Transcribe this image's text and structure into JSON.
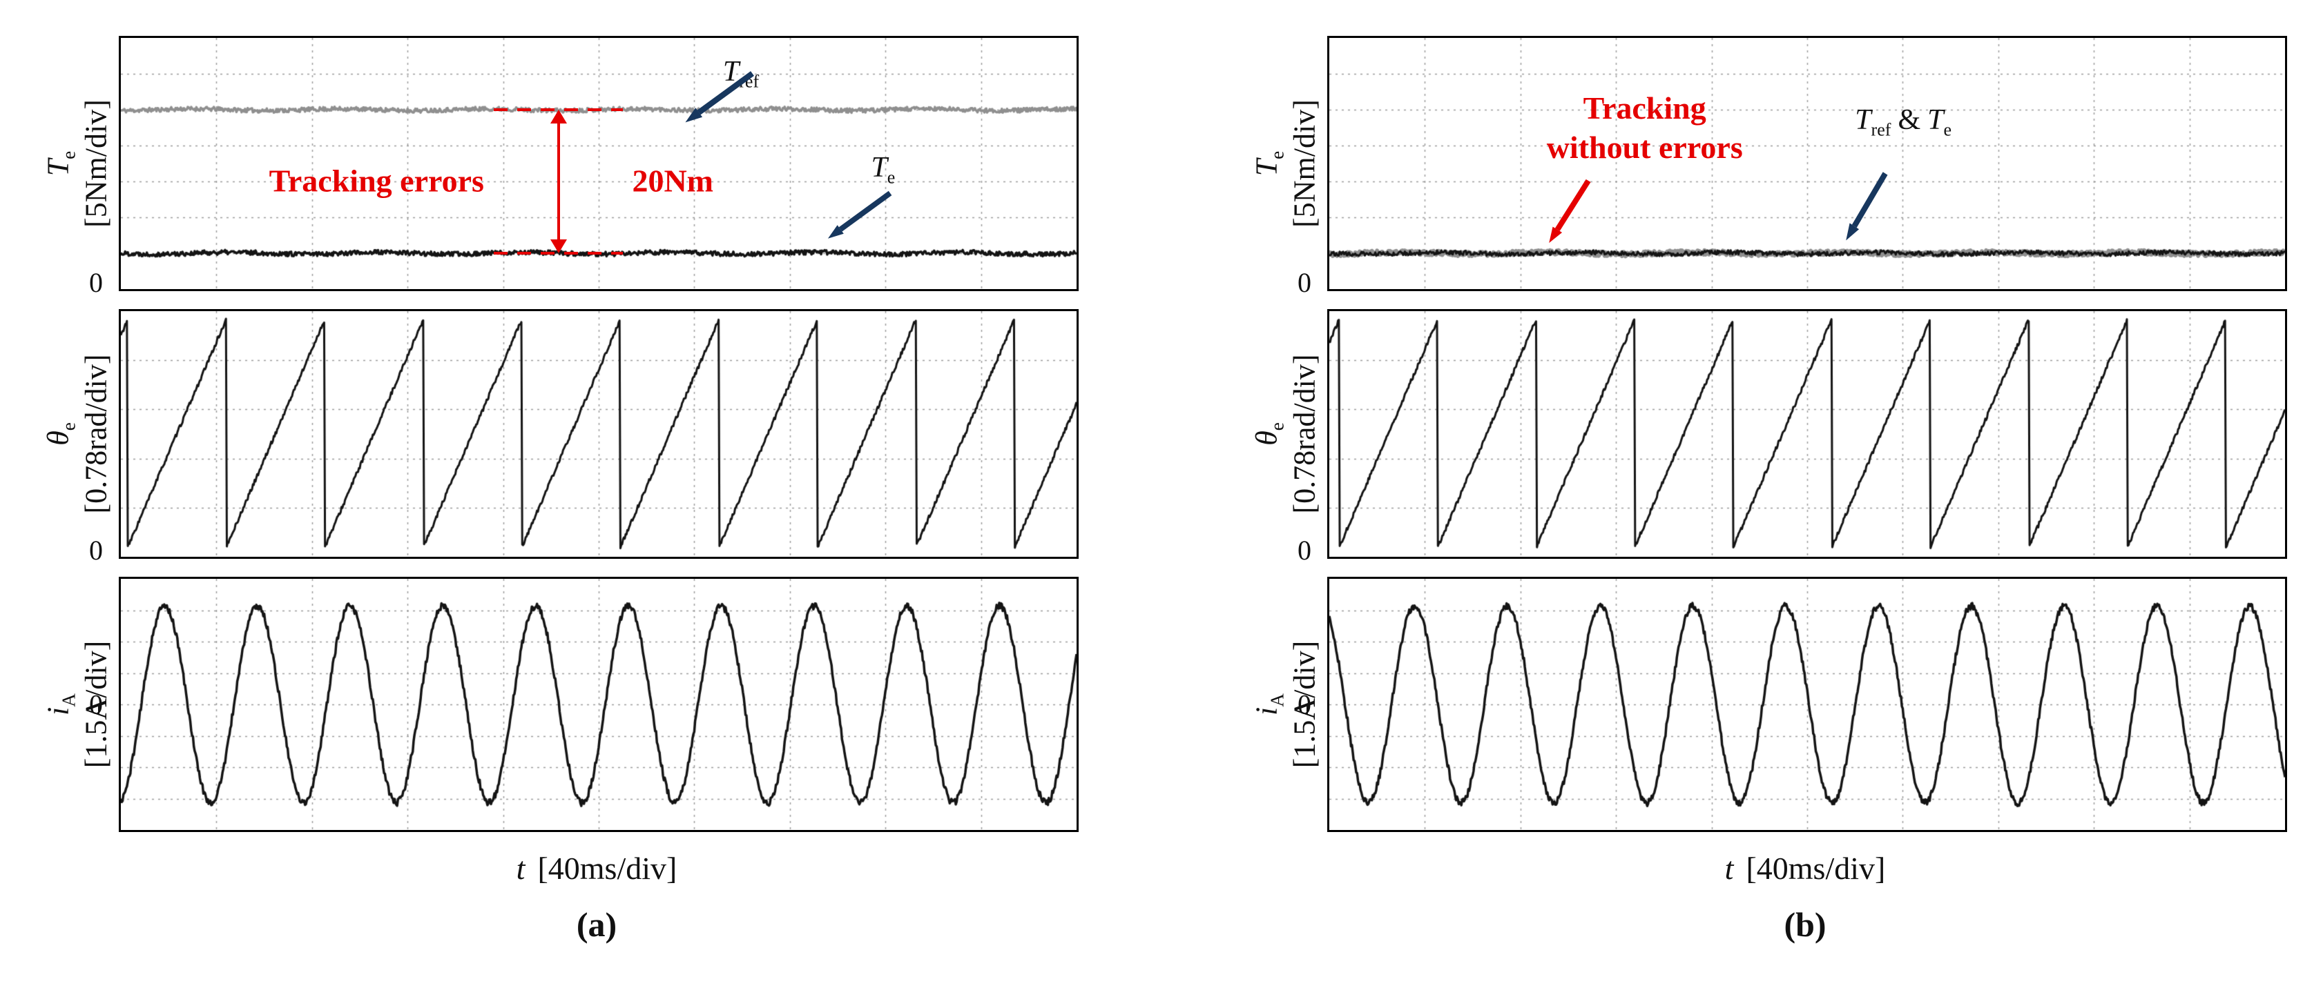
{
  "colors": {
    "annotation_red": "#e50000",
    "arrow_navy": "#17375e",
    "trace_gray": "#8f8f8f",
    "trace_black": "#141414",
    "grid": "#9b9b9b",
    "border": "#000000"
  },
  "labels": {
    "zero": "0",
    "torque_var": "T",
    "torque_sub": "e",
    "torque_unit": "[5Nm/div]",
    "angle_var": "θ",
    "angle_sub": "e",
    "angle_unit": "[0.78rad/div]",
    "current_var": "i",
    "current_sub": "A",
    "current_unit": "[1.5A/div]",
    "time_var": "t",
    "time_unit": "[40ms/div]",
    "caption_a": "(a)",
    "caption_b": "(b)",
    "tracking_errors": "Tracking errors",
    "gap": "20Nm",
    "t_var": "T",
    "ref_sub": "ref",
    "e_sub": "e",
    "amp": "&",
    "tracking_without_line1": "Tracking",
    "tracking_without_line2": "without errors"
  },
  "chart_data": [
    {
      "caption": "(a)",
      "xlabel": "t [40ms/div]",
      "x_divisions": 10,
      "x_ms_per_div": 40,
      "x_total_ms": 400,
      "panels": [
        {
          "ylabel": "Te [5Nm/div]",
          "units_per_div": "5 Nm",
          "yrange": [
            0,
            35
          ],
          "grid": {
            "vdivs": 10,
            "hdivs": 7
          },
          "annotation_gap_Nm": 20,
          "series": [
            {
              "name": "Tref",
              "kind": "constant",
              "level": 25,
              "units": "Nm",
              "color": "#8f8f8f",
              "width": 3.5,
              "noise": 0.3,
              "seed": 11
            },
            {
              "name": "Te",
              "kind": "constant",
              "level": 5,
              "units": "Nm",
              "color": "#141414",
              "width": 3.5,
              "noise": 0.32,
              "seed": 22
            }
          ]
        },
        {
          "ylabel": "θe [0.78rad/div]",
          "units_per_div": "0.78 rad",
          "yrange": [
            0,
            6.5
          ],
          "grid": {
            "vdivs": 10,
            "hdivs": 5
          },
          "series": [
            {
              "name": "theta_e",
              "kind": "sawtooth",
              "min": 0.25,
              "max": 6.28,
              "cycles": 9.7,
              "phase": 0.93,
              "period_ms": 41,
              "color": "#141414",
              "width": 3,
              "noise": 0.05,
              "seed": 33
            }
          ]
        },
        {
          "ylabel": "iA [1.5A/div]",
          "units_per_div": "1.5 A",
          "yrange": [
            -6,
            6
          ],
          "grid": {
            "vdivs": 10,
            "hdivs": 8
          },
          "series": [
            {
              "name": "iA",
              "kind": "sine",
              "amplitude": 4.7,
              "cycles": 10.3,
              "phase": 0.78,
              "period_ms": 39,
              "color": "#141414",
              "width": 3.5,
              "noise": 0.16,
              "seed": 44
            }
          ]
        }
      ]
    },
    {
      "caption": "(b)",
      "xlabel": "t [40ms/div]",
      "x_divisions": 10,
      "x_ms_per_div": 40,
      "x_total_ms": 400,
      "panels": [
        {
          "ylabel": "Te [5Nm/div]",
          "units_per_div": "5 Nm",
          "yrange": [
            0,
            35
          ],
          "grid": {
            "vdivs": 10,
            "hdivs": 7
          },
          "annotation_gap_Nm": 0,
          "series": [
            {
              "name": "Tref",
              "kind": "constant",
              "level": 5,
              "units": "Nm",
              "color": "#8f8f8f",
              "width": 6,
              "noise": 0.3,
              "seed": 55
            },
            {
              "name": "Te",
              "kind": "constant",
              "level": 5,
              "units": "Nm",
              "color": "#141414",
              "width": 3,
              "noise": 0.3,
              "seed": 66
            }
          ]
        },
        {
          "ylabel": "θe [0.78rad/div]",
          "units_per_div": "0.78 rad",
          "yrange": [
            0,
            6.5
          ],
          "grid": {
            "vdivs": 10,
            "hdivs": 5
          },
          "series": [
            {
              "name": "theta_e",
              "kind": "sawtooth",
              "min": 0.25,
              "max": 6.28,
              "cycles": 9.7,
              "phase": 0.9,
              "period_ms": 41,
              "color": "#141414",
              "width": 3,
              "noise": 0.05,
              "seed": 77
            }
          ]
        },
        {
          "ylabel": "iA [1.5A/div]",
          "units_per_div": "1.5 A",
          "yrange": [
            -6,
            6
          ],
          "grid": {
            "vdivs": 10,
            "hdivs": 8
          },
          "series": [
            {
              "name": "iA",
              "kind": "sine",
              "amplitude": 4.7,
              "cycles": 10.3,
              "phase": 0.33,
              "period_ms": 39,
              "color": "#141414",
              "width": 3.5,
              "noise": 0.16,
              "seed": 88
            }
          ]
        }
      ]
    }
  ]
}
